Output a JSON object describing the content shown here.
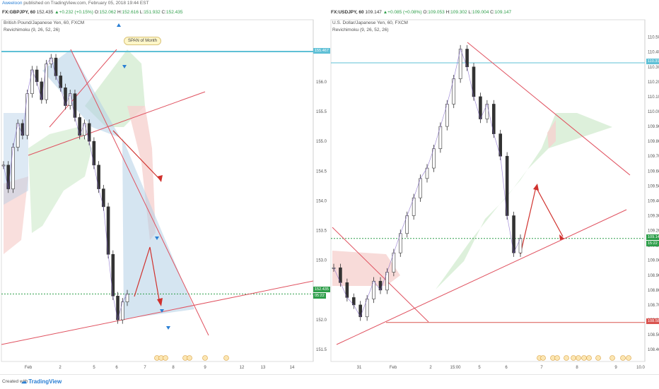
{
  "header": {
    "author": "Aweeloon",
    "published": "published on TradingView.com, February 05, 2018 19:44 EST"
  },
  "footer": {
    "created_with": "Created with",
    "brand": "TradingView"
  },
  "colors": {
    "up": "#2e9e4a",
    "down": "#b22222",
    "trend": "#e05260",
    "cloud_green": "#d4ecd2",
    "cloud_red": "#f6d2cf",
    "triangle_blue": "#b3cfe6",
    "hline_cyan": "#5fc0d6"
  },
  "panels": [
    {
      "symbol_line": "FX:GBPJPY, 60",
      "ohlc": {
        "last": "152.435",
        "change": "▲+0.232 (+0.15%)",
        "o_label": "O:",
        "o": "152.062",
        "h_label": "H:",
        "h": "152.616",
        "l_label": "L:",
        "l": "151.932",
        "c_label": "C:",
        "c": "152.435"
      },
      "title": "British Pound/Japanese Yen, 60, FXCM",
      "indicator": "Revichimoku (9, 26, 52, 26)",
      "callout": "SPAN of Month",
      "price_tags": [
        {
          "text": "155.467",
          "color": "#5fc0d6"
        },
        {
          "text": "152.435",
          "color": "#2e9e4a"
        },
        {
          "text": "05:22",
          "color": "#2e9e4a"
        }
      ],
      "chart_data": {
        "type": "line",
        "ylim": [
          151.3,
          156.9
        ],
        "y_ticks": [
          "156.000",
          "155.500",
          "155.000",
          "154.500",
          "154.000",
          "153.500",
          "153.000",
          "152.500",
          "152.000",
          "151.500"
        ],
        "y_tick_values": [
          156.0,
          155.5,
          155.0,
          154.5,
          154.0,
          153.5,
          153.0,
          152.5,
          152.0,
          151.5
        ],
        "x_ticks": [
          "Feb",
          "2",
          "5",
          "6",
          "7",
          "8",
          "9",
          "12",
          "13",
          "14"
        ],
        "close": [
          154.6,
          154.2,
          154.9,
          155.3,
          155.1,
          155.8,
          156.2,
          156.0,
          155.7,
          156.3,
          156.4,
          156.1,
          155.9,
          155.6,
          155.8,
          155.4,
          155.1,
          155.3,
          155.0,
          154.6,
          154.2,
          153.9,
          153.1,
          152.4,
          152.0,
          152.3,
          152.435
        ]
      }
    },
    {
      "symbol_line": "FX:USDJPY, 60",
      "ohlc": {
        "last": "109.147",
        "change": "▲+0.085 (+0.08%)",
        "o_label": "O:",
        "o": "109.053",
        "h_label": "H:",
        "h": "109.302",
        "l_label": "L:",
        "l": "109.004",
        "c_label": "C:",
        "c": "109.147"
      },
      "title": "U.S. Dollar/Japanese Yen, 60, FXCM",
      "indicator": "Revichimoku (9, 26, 52, 26)",
      "price_tags": [
        {
          "text": "110.315",
          "color": "#5fc0d6"
        },
        {
          "text": "109.147",
          "color": "#2e9e4a"
        },
        {
          "text": "15:22",
          "color": "#2e9e4a"
        },
        {
          "text": "108.582",
          "color": "#d9534f"
        }
      ],
      "chart_data": {
        "type": "line",
        "ylim": [
          108.32,
          110.56
        ],
        "y_ticks": [
          "110.500",
          "110.400",
          "110.300",
          "110.200",
          "110.100",
          "110.000",
          "109.900",
          "109.800",
          "109.700",
          "109.600",
          "109.500",
          "109.400",
          "109.300",
          "109.200",
          "109.100",
          "109.000",
          "108.900",
          "108.800",
          "108.700",
          "108.600",
          "108.500",
          "108.400"
        ],
        "y_tick_values": [
          110.5,
          110.4,
          110.3,
          110.2,
          110.1,
          110.0,
          109.9,
          109.8,
          109.7,
          109.6,
          109.5,
          109.4,
          109.3,
          109.2,
          109.1,
          109.0,
          108.9,
          108.8,
          108.7,
          108.6,
          108.5,
          108.4
        ],
        "x_ticks": [
          "31",
          "Feb",
          "2",
          "15:00",
          "5",
          "6",
          "7",
          "8",
          "9",
          "10.0"
        ],
        "close": [
          108.95,
          108.85,
          108.75,
          108.7,
          108.62,
          108.74,
          108.86,
          108.8,
          108.92,
          109.05,
          109.18,
          109.3,
          109.42,
          109.55,
          109.62,
          109.75,
          109.9,
          110.05,
          110.22,
          110.42,
          110.3,
          110.1,
          109.95,
          110.05,
          109.85,
          109.7,
          109.3,
          109.05,
          109.147
        ]
      }
    }
  ]
}
